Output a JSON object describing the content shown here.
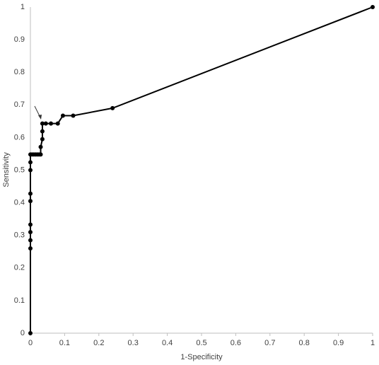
{
  "chart_data": {
    "type": "line",
    "x_label": "1-Specificity",
    "y_label": "Sensitivity",
    "x": [
      0,
      0,
      0,
      0,
      0,
      0,
      0,
      0,
      0,
      0,
      0.005,
      0.01,
      0.015,
      0.02,
      0.025,
      0.03,
      0.03,
      0.035,
      0.035,
      0.035,
      0.045,
      0.06,
      0.08,
      0.095,
      0.125,
      0.24,
      1
    ],
    "values": [
      0,
      0.26,
      0.285,
      0.31,
      0.333,
      0.405,
      0.428,
      0.5,
      0.524,
      0.548,
      0.548,
      0.548,
      0.548,
      0.548,
      0.548,
      0.548,
      0.571,
      0.595,
      0.619,
      0.643,
      0.643,
      0.643,
      0.643,
      0.667,
      0.667,
      0.69,
      1
    ],
    "color": "#000000",
    "xlim": [
      0,
      1
    ],
    "xticks": [
      0,
      0.1,
      0.2,
      0.3,
      0.4,
      0.5,
      0.6,
      0.7,
      0.8,
      0.9,
      1
    ],
    "ylim": [
      0,
      1
    ],
    "yticks": [
      0,
      0.1,
      0.2,
      0.3,
      0.4,
      0.5,
      0.6,
      0.7,
      0.8,
      0.9,
      1
    ],
    "grid": false
  }
}
